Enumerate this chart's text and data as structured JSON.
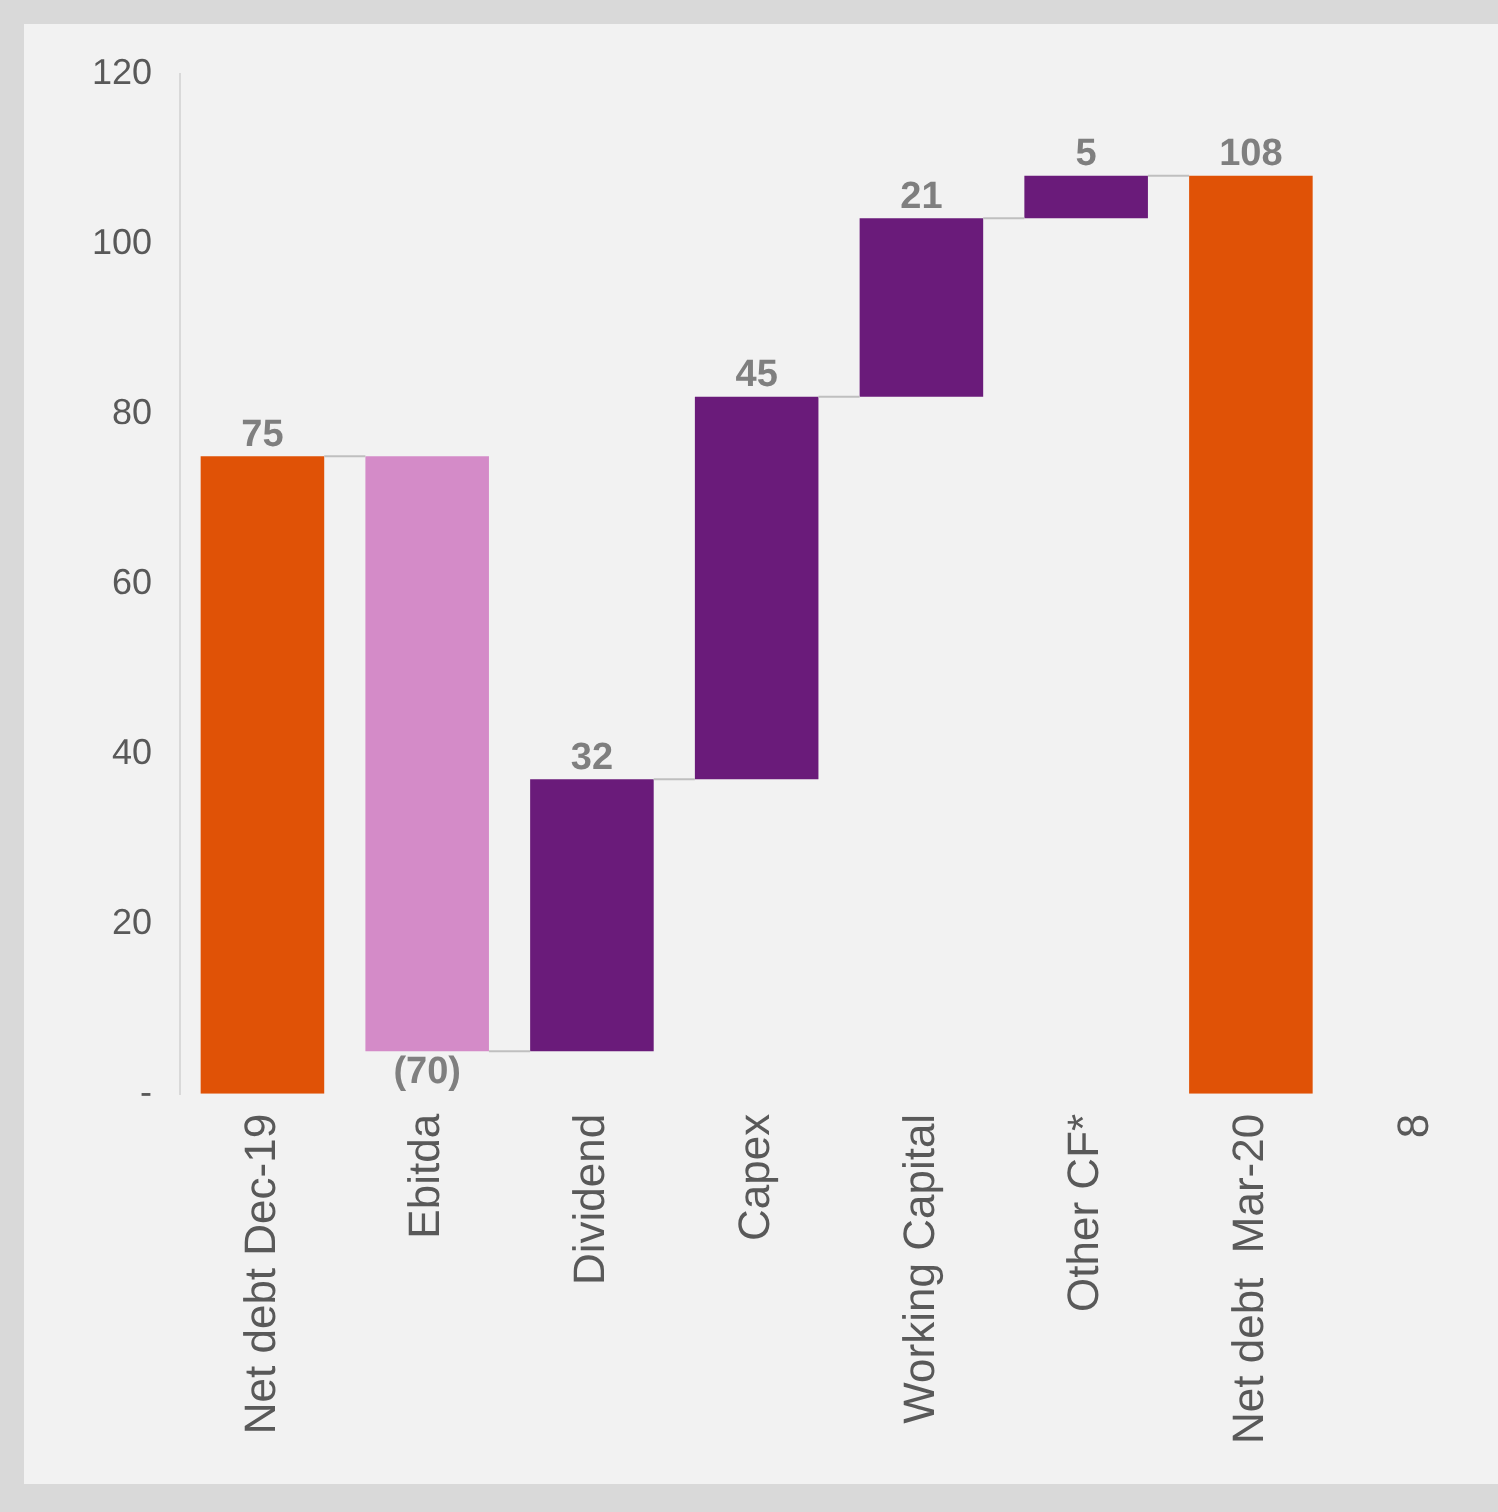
{
  "chart_data": {
    "type": "bar",
    "categories": [
      "Net debt Dec-19",
      "Ebitda",
      "Dividend",
      "Capex",
      "Working Capital",
      "Other CF*",
      "Net debt  Mar-20",
      "8"
    ],
    "values": [
      75,
      -70,
      32,
      45,
      21,
      5,
      108,
      null
    ],
    "base": [
      0,
      75,
      5,
      37,
      82,
      103,
      0,
      null
    ],
    "colors": [
      "#e05206",
      "#d48bc8",
      "#6a1b7a",
      "#6a1b7a",
      "#6a1b7a",
      "#6a1b7a",
      "#e05206",
      null
    ],
    "value_labels": [
      "75",
      "(70)",
      "32",
      "45",
      "21",
      "5",
      "108",
      null
    ],
    "ylim": [
      0,
      120
    ],
    "yticks": [
      {
        "value": 0,
        "label": "-"
      },
      20,
      40,
      60,
      80,
      100,
      120
    ],
    "grid": false,
    "legend": false
  }
}
